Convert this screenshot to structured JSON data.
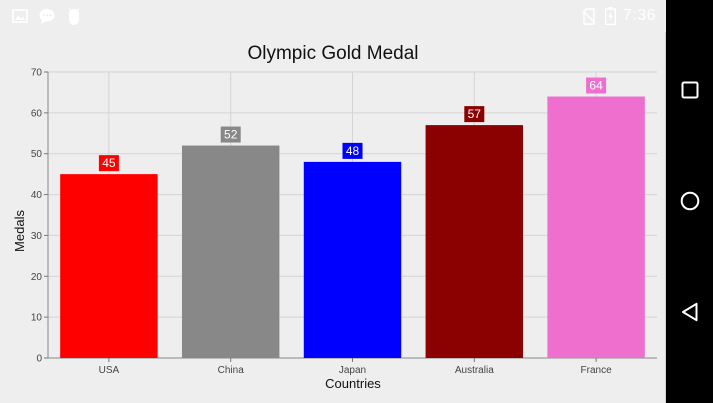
{
  "status_bar": {
    "time": "7:36",
    "icons": [
      "image-notification-icon",
      "chat-notification-icon",
      "android-debug-icon",
      "no-sim-icon",
      "battery-charging-icon"
    ]
  },
  "nav_bar": {
    "buttons": [
      "recents-square-icon",
      "home-circle-icon",
      "back-triangle-icon"
    ]
  },
  "colors": {
    "background": "#eeeeee",
    "grid": "#d4d4d4",
    "nav": "#000000"
  },
  "chart_data": {
    "type": "bar",
    "title": "Olympic Gold Medal",
    "xlabel": "Countries",
    "ylabel": "Medals",
    "categories": [
      "USA",
      "China",
      "Japan",
      "Australia",
      "France"
    ],
    "values": [
      45,
      52,
      48,
      57,
      64
    ],
    "colors": [
      "#ff0000",
      "#888888",
      "#0000ff",
      "#8b0000",
      "#ee6fce"
    ],
    "ylim": [
      0,
      70
    ],
    "yticks": [
      0,
      10,
      20,
      30,
      40,
      50,
      60,
      70
    ],
    "grid": true,
    "data_labels": true,
    "legend": "none"
  }
}
